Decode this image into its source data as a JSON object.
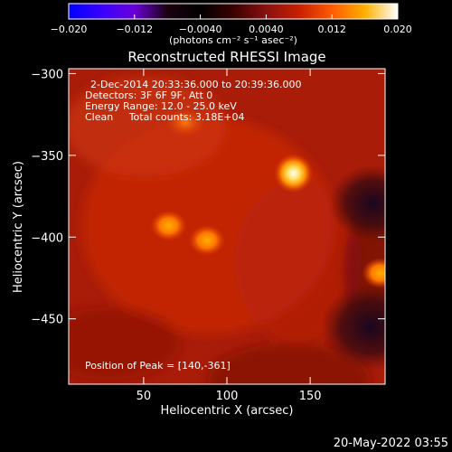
{
  "colorbar": {
    "min": -0.02,
    "max": 0.02,
    "tick_values": [
      -0.02,
      -0.012,
      -0.004,
      0.004,
      0.012,
      0.02
    ],
    "tick_labels": [
      "−0.020",
      "−0.012",
      "−0.0040",
      "0.0040",
      "0.012",
      "0.020"
    ],
    "units_label": "(photons cm⁻² s⁻¹ asec⁻²)",
    "colors": [
      "#0000ff",
      "#3a00ff",
      "#6a00d8",
      "#1a0010",
      "#000000",
      "#3a0000",
      "#8a1010",
      "#c82000",
      "#ff5a00",
      "#ffb000",
      "#ffffff"
    ]
  },
  "chart_data": {
    "type": "heatmap",
    "title": "Reconstructed RHESSI Image",
    "xlabel": "Heliocentric X (arcsec)",
    "ylabel": "Heliocentric Y (arcsec)",
    "xlim": [
      5,
      195
    ],
    "ylim": [
      -490,
      -297
    ],
    "x_ticks": [
      50,
      100,
      150
    ],
    "y_ticks": [
      -300,
      -350,
      -400,
      -450
    ],
    "annotations": [
      "2-Dec-2014 20:33:36.000 to 20:39:36.000",
      "Detectors: 3F 6F 9F, Att 0",
      "Energy Range: 12.0 - 25.0 keV",
      "Clean     Total counts: 3.18E+04"
    ],
    "peak_label": "Position of Peak = [140,-361]",
    "peak": {
      "x": 140,
      "y": -361
    },
    "sources": [
      {
        "x": 140,
        "y": -361,
        "level": "peak"
      },
      {
        "x": 65,
        "y": -393,
        "level": "bright"
      },
      {
        "x": 88,
        "y": -402,
        "level": "bright"
      },
      {
        "x": 75,
        "y": -330,
        "level": "medium"
      },
      {
        "x": 192,
        "y": -422,
        "level": "bright"
      }
    ],
    "grid": false
  },
  "footer_timestamp": "20-May-2022 03:55"
}
